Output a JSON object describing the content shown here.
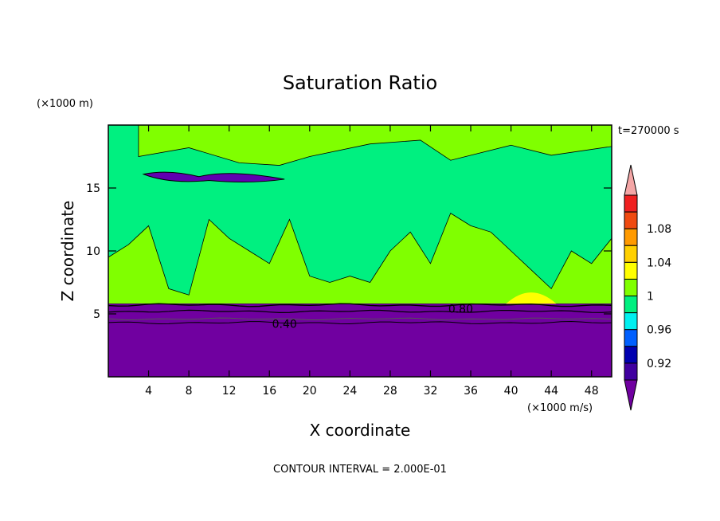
{
  "chart_data": {
    "type": "heatmap",
    "title": "Saturation Ratio",
    "xlabel": "X coordinate",
    "ylabel": "Z coordinate",
    "x_unit": "(×1000 m/s)",
    "y_unit": "(×1000 m)",
    "time_label": "t=270000 s",
    "footer": "CONTOUR INTERVAL = 2.000E-01",
    "xlim": [
      0,
      50
    ],
    "ylim": [
      0,
      20
    ],
    "x_ticks": [
      4,
      8,
      12,
      16,
      20,
      24,
      28,
      32,
      36,
      40,
      44,
      48
    ],
    "y_ticks": [
      5,
      10,
      15
    ],
    "contour_labels": [
      {
        "text": "0.40",
        "x": 17.5,
        "y": 4.2
      },
      {
        "text": "0.80",
        "x": 35.0,
        "y": 5.4
      }
    ],
    "colorbar": {
      "levels": [
        {
          "color": "#f4a6a6"
        },
        {
          "color": "#f02020",
          "label": ""
        },
        {
          "color": "#f04a10",
          "label": "1.08"
        },
        {
          "color": "#ff9a00",
          "label": ""
        },
        {
          "color": "#ffd000",
          "label": "1.04"
        },
        {
          "color": "#ffff00",
          "label": ""
        },
        {
          "color": "#80ff00",
          "label": "1"
        },
        {
          "color": "#00f080",
          "label": ""
        },
        {
          "color": "#00f0f0",
          "label": "0.96"
        },
        {
          "color": "#0060ff",
          "label": ""
        },
        {
          "color": "#0000b0",
          "label": "0.92"
        },
        {
          "color": "#4000a0",
          "label": ""
        },
        {
          "color": "#7000a0"
        }
      ]
    },
    "regions": {
      "background_color": "#00f080",
      "lower_layer_color": "#7000a0",
      "lower_layer_top": 5.8,
      "supersat_color": "#80ff00",
      "dry_band_color": "#6000b0",
      "dry_band": {
        "x0": 3.5,
        "x1": 17.5,
        "y0": 15.3,
        "y1": 16.5
      },
      "peak_color": "#ffff00"
    }
  }
}
